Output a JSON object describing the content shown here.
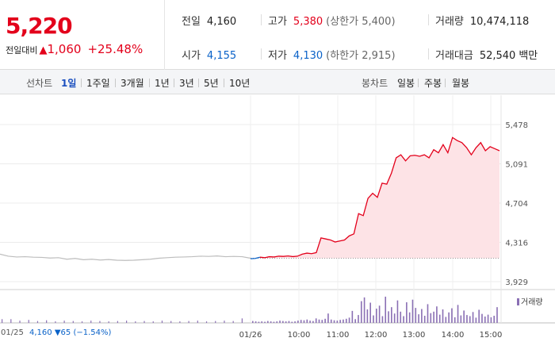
{
  "quote": {
    "price": "5,220",
    "change_label": "전일대비",
    "change_arrow": "▲",
    "change_value": "1,060",
    "change_pct": "+25.48%",
    "prev_close": {
      "label": "전일",
      "value": "4,160"
    },
    "open": {
      "label": "시가",
      "value": "4,155"
    },
    "high": {
      "label": "고가",
      "value": "5,380",
      "sub": "(상한가 5,400)"
    },
    "low": {
      "label": "저가",
      "value": "4,130",
      "sub": "(하한가 2,915)"
    },
    "volume": {
      "label": "거래량",
      "value": "10,474,118"
    },
    "amount": {
      "label": "거래대금",
      "value": "52,540",
      "unit": "백만"
    }
  },
  "period_bar": {
    "line_label": "선차트",
    "line_options": [
      "1일",
      "1주일",
      "3개월",
      "1년",
      "3년",
      "5년",
      "10년"
    ],
    "active_index": 0,
    "candle_label": "봉차트",
    "candle_options": [
      "일봉",
      "주봉",
      "월봉"
    ]
  },
  "chart_data": {
    "type": "line",
    "y_ticks": [
      "5,478",
      "5,091",
      "4,704",
      "4,316",
      "3,929"
    ],
    "ylim": [
      3929,
      5478
    ],
    "x_ticks": [
      "01/26",
      "10:00",
      "11:00",
      "12:00",
      "13:00",
      "14:00",
      "15:00"
    ],
    "x_start_label": "01/25",
    "prev_day": {
      "close": "4,160",
      "arrow": "▼",
      "change": "65",
      "pct": "(−1.54%)"
    },
    "baseline": 4160,
    "volume_label": "거래량",
    "colors": {
      "up": "#e3001b",
      "fill": "#fde3e6",
      "prev": "#bdbdbd",
      "volume": "#8a6fb4",
      "blue": "#0a62c8"
    },
    "prev_series": [
      4200,
      4180,
      4172,
      4175,
      4170,
      4168,
      4162,
      4165,
      4150,
      4158,
      4145,
      4150,
      4142,
      4147,
      4140,
      4138,
      4140,
      4145,
      4150,
      4160,
      4165,
      4170,
      4172,
      4175,
      4180,
      4178,
      4182,
      4175,
      4178,
      4175,
      4160
    ],
    "today_series": [
      4155,
      4158,
      4170,
      4165,
      4175,
      4172,
      4180,
      4178,
      4182,
      4176,
      4180,
      4200,
      4210,
      4205,
      4215,
      4360,
      4350,
      4340,
      4320,
      4330,
      4340,
      4380,
      4400,
      4600,
      4580,
      4750,
      4800,
      4760,
      4900,
      4890,
      5000,
      5150,
      5180,
      5120,
      5170,
      5175,
      5165,
      5180,
      5150,
      5230,
      5200,
      5280,
      5200,
      5350,
      5320,
      5300,
      5250,
      5180,
      5250,
      5300,
      5220,
      5260,
      5240,
      5220
    ],
    "volume_prev": [
      1,
      1,
      0.6,
      0.8,
      0.5,
      0.7,
      0.4,
      0.6,
      0.5,
      0.4,
      0.6,
      0.5,
      0.4,
      0.5,
      0.6,
      0.4,
      0.5,
      0.4,
      0.6,
      0.5,
      0.4,
      0.5,
      0.6,
      0.4,
      0.5,
      0.6,
      0.5,
      1.2
    ],
    "volume_today": [
      0.5,
      0.4,
      0.3,
      0.4,
      0.3,
      0.5,
      0.4,
      0.3,
      0.4,
      0.6,
      0.5,
      0.4,
      0.5,
      0.3,
      0.4,
      0.6,
      0.8,
      0.7,
      0.9,
      0.6,
      0.5,
      1.2,
      0.9,
      0.8,
      1.1,
      2.5,
      0.9,
      0.7,
      0.6,
      0.8,
      0.9,
      1.1,
      1.4,
      3.2,
      1.0,
      2.1,
      5.8,
      6.8,
      3.6,
      5.4,
      2.0,
      3.8,
      4.6,
      1.8,
      7.0,
      3.1,
      4.2,
      2.5,
      6.0,
      3.0,
      1.8,
      5.5,
      2.8,
      6.2,
      4.0,
      2.3,
      3.7,
      1.9,
      5.0,
      2.6,
      3.0,
      4.4,
      2.2,
      3.6,
      1.6,
      2.8,
      3.9,
      1.5,
      4.8,
      2.0,
      3.3,
      2.1,
      1.8,
      2.9,
      1.4,
      3.5,
      2.4,
      1.7,
      2.2,
      1.5,
      1.9,
      4.2
    ]
  }
}
